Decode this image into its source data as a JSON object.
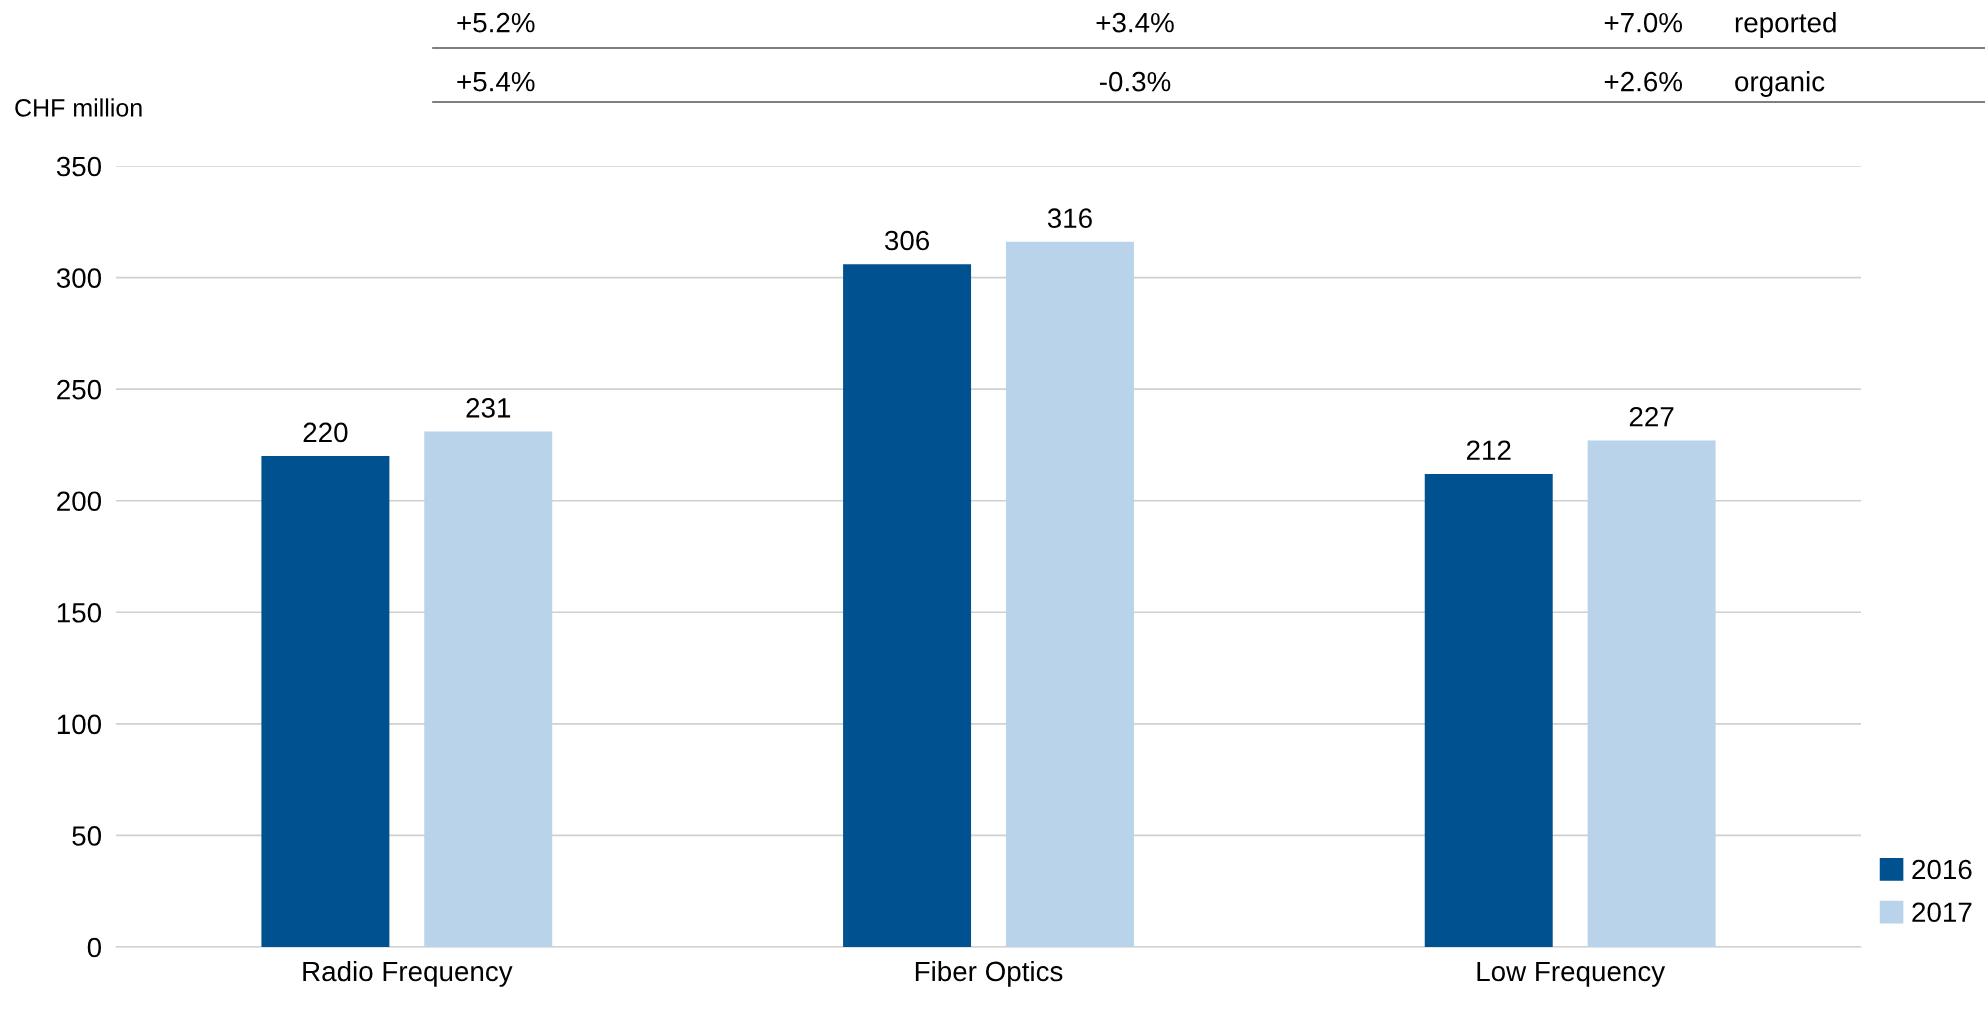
{
  "chart_data": {
    "type": "bar",
    "ylabel": "CHF million",
    "categories": [
      "Radio Frequency",
      "Fiber Optics",
      "Low Frequency"
    ],
    "series": [
      {
        "name": "2016",
        "color": "#00518f",
        "values": [
          220,
          306,
          212
        ]
      },
      {
        "name": "2017",
        "color": "#b8d3ea",
        "values": [
          231,
          316,
          227
        ]
      }
    ],
    "ylim": [
      0,
      350
    ],
    "yticks": [
      0,
      50,
      100,
      150,
      200,
      250,
      300,
      350
    ],
    "grid": "y",
    "legend": "bottom right",
    "data_labels": true,
    "annotations": [
      "+5.2%",
      "+3.4%",
      "+7.0%",
      "reported",
      "+5.4%",
      "-0.3%",
      "+2.6%",
      "organic"
    ]
  }
}
